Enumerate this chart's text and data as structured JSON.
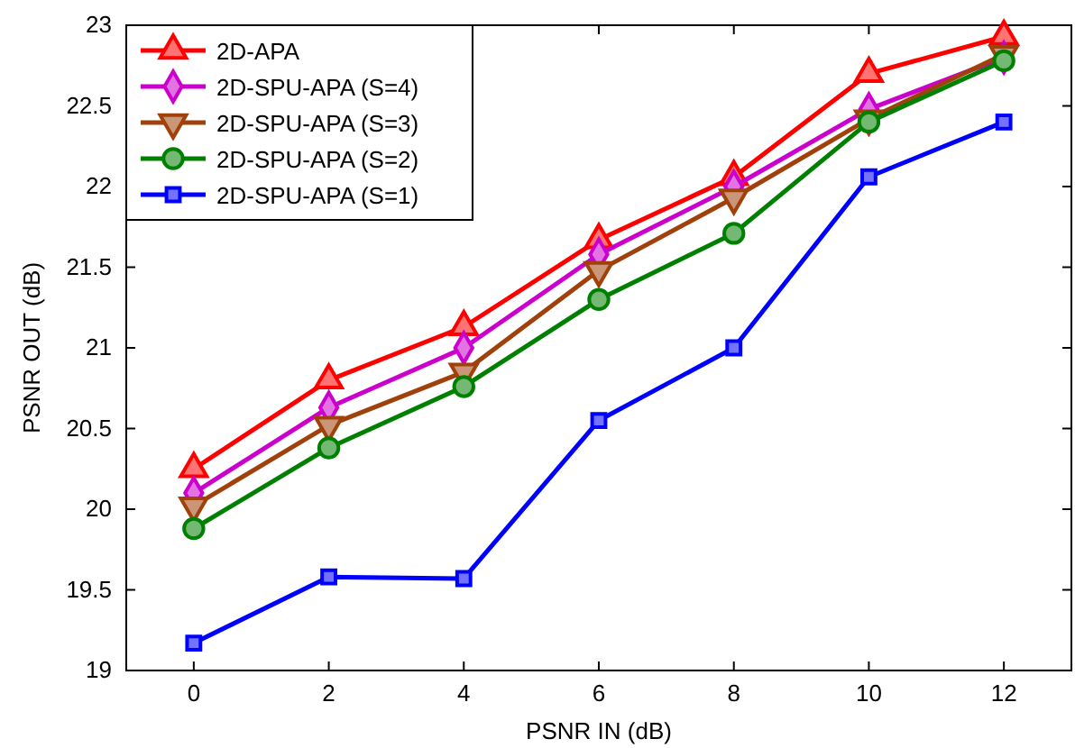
{
  "chart_data": {
    "type": "line",
    "xlabel": "PSNR IN (dB)",
    "ylabel": "PSNR OUT (dB)",
    "x": [
      0,
      2,
      4,
      6,
      8,
      10,
      12
    ],
    "xlim": [
      -1,
      13
    ],
    "xticks": [
      0,
      2,
      4,
      6,
      8,
      10,
      12
    ],
    "ylim": [
      19,
      23
    ],
    "yticks": [
      19,
      19.5,
      20,
      20.5,
      21,
      21.5,
      22,
      22.5,
      23
    ],
    "grid": false,
    "legend": "top left",
    "line_style": "solid",
    "series": [
      {
        "name": "2D-APA",
        "color": "#ff0000",
        "marker": "triangle",
        "values": [
          20.25,
          20.8,
          21.13,
          21.67,
          22.06,
          22.7,
          22.93
        ]
      },
      {
        "name": "2D-SPU-APA (S=4)",
        "color": "#cc00cc",
        "marker": "diamond",
        "values": [
          20.1,
          20.63,
          21.0,
          21.58,
          22.0,
          22.48,
          22.8
        ]
      },
      {
        "name": "2D-SPU-APA (S=3)",
        "color": "#a0400a",
        "marker": "triangle-down",
        "values": [
          20.02,
          20.52,
          20.85,
          21.48,
          21.93,
          22.42,
          22.82
        ]
      },
      {
        "name": "2D-SPU-APA (S=2)",
        "color": "#008000",
        "marker": "circle",
        "values": [
          19.88,
          20.38,
          20.76,
          21.3,
          21.71,
          22.4,
          22.78
        ]
      },
      {
        "name": "2D-SPU-APA (S=1)",
        "color": "#0000ff",
        "marker": "square",
        "values": [
          19.17,
          19.58,
          19.57,
          20.55,
          21.0,
          22.06,
          22.4
        ]
      }
    ]
  }
}
